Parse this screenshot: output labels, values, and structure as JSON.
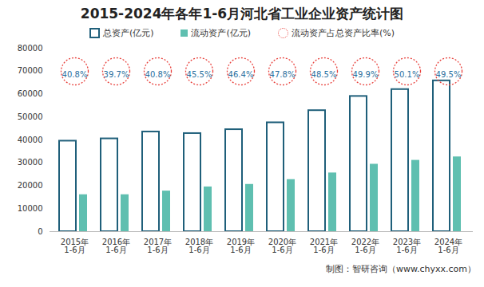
{
  "chart_data": {
    "type": "bar",
    "title": "2015-2024年各年1-6月河北省工业企业资产统计图",
    "caption": "制图：智研咨询（www.chyxx.com）",
    "categories": [
      "2015年\n1-6月",
      "2016年\n1-6月",
      "2017年\n1-6月",
      "2018年\n1-6月",
      "2019年\n1-6月",
      "2020年\n1-6月",
      "2021年\n1-6月",
      "2022年\n1-6月",
      "2023年\n1-6月",
      "2024年\n1-6月"
    ],
    "series": [
      {
        "name": "总资产(亿元)",
        "color": "#1f5f7a",
        "values": [
          39500,
          40500,
          43500,
          42800,
          44500,
          47500,
          52800,
          59000,
          62000,
          65800
        ]
      },
      {
        "name": "流动资产(亿元)",
        "color": "#5fbfb0",
        "values": [
          16100,
          16100,
          17700,
          19500,
          20600,
          22700,
          25600,
          29400,
          31100,
          32600
        ]
      },
      {
        "name": "流动资产占总资产比率(%)",
        "type": "scatter",
        "marker": "circle",
        "line_style": "dotted",
        "color": "#e8413c",
        "values": [
          40.8,
          39.7,
          40.8,
          45.5,
          46.4,
          47.8,
          48.5,
          49.9,
          50.1,
          49.5
        ],
        "value_labels": [
          "40.8%",
          "39.7%",
          "40.8%",
          "45.5%",
          "46.4%",
          "47.8%",
          "48.5%",
          "49.9%",
          "50.1%",
          "49.5%"
        ]
      }
    ],
    "ylim": [
      0,
      80000
    ],
    "yticks": [
      0,
      10000,
      20000,
      30000,
      40000,
      50000,
      60000,
      70000,
      80000
    ],
    "grid": false,
    "legend": "top"
  }
}
